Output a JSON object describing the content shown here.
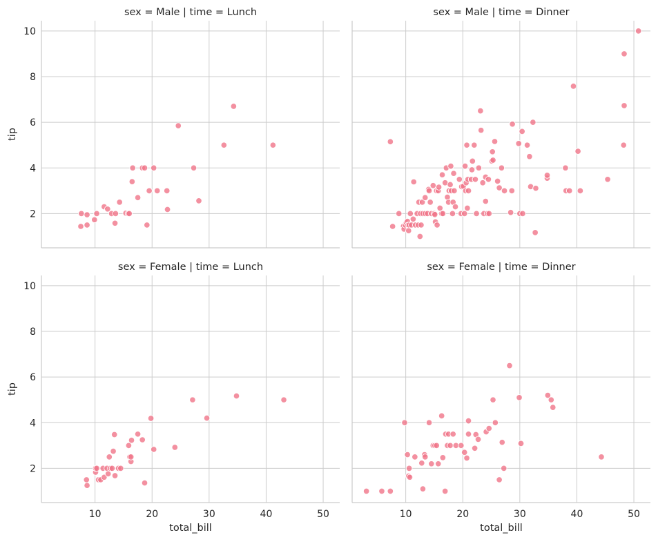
{
  "chart_data": {
    "type": "scatter",
    "color": "#f07488",
    "grid": true,
    "xlabel": "total_bill",
    "ylabel": "tip",
    "xlim": [
      0.6,
      52.9
    ],
    "ylim": [
      0.5,
      10.45
    ],
    "xticks": [
      10,
      20,
      30,
      40,
      50
    ],
    "yticks": [
      2,
      4,
      6,
      8,
      10
    ],
    "panels": [
      {
        "title": "sex = Male | time = Lunch",
        "row": 0,
        "col": 0,
        "points": [
          [
            7.5,
            1.44
          ],
          [
            7.6,
            2.0
          ],
          [
            8.6,
            1.95
          ],
          [
            8.6,
            1.5
          ],
          [
            9.9,
            1.73
          ],
          [
            10.3,
            2.0
          ],
          [
            11.6,
            2.3
          ],
          [
            12.2,
            2.2
          ],
          [
            12.9,
            2.0
          ],
          [
            13.5,
            1.58
          ],
          [
            13.6,
            2.0
          ],
          [
            14.3,
            2.5
          ],
          [
            15.4,
            2.02
          ],
          [
            15.8,
            2.0
          ],
          [
            16.0,
            2.0
          ],
          [
            16.5,
            3.4
          ],
          [
            16.6,
            4.0
          ],
          [
            17.5,
            2.7
          ],
          [
            18.3,
            4.0
          ],
          [
            18.7,
            4.0
          ],
          [
            19.1,
            1.5
          ],
          [
            19.5,
            3.0
          ],
          [
            20.3,
            4.0
          ],
          [
            20.9,
            3.0
          ],
          [
            22.6,
            3.0
          ],
          [
            22.7,
            2.18
          ],
          [
            24.6,
            5.85
          ],
          [
            27.3,
            4.0
          ],
          [
            28.2,
            2.56
          ],
          [
            32.6,
            5.0
          ],
          [
            34.3,
            6.7
          ],
          [
            41.2,
            5.0
          ]
        ]
      },
      {
        "title": "sex = Male | time = Dinner",
        "row": 0,
        "col": 1,
        "points": [
          [
            7.3,
            5.15
          ],
          [
            7.7,
            1.44
          ],
          [
            8.8,
            2.0
          ],
          [
            9.6,
            1.45
          ],
          [
            9.7,
            1.32
          ],
          [
            9.9,
            1.5
          ],
          [
            10.1,
            1.6
          ],
          [
            10.3,
            1.66
          ],
          [
            10.4,
            1.5
          ],
          [
            10.5,
            1.25
          ],
          [
            10.6,
            1.5
          ],
          [
            10.8,
            2.0
          ],
          [
            11.0,
            1.5
          ],
          [
            11.3,
            1.76
          ],
          [
            11.4,
            3.39
          ],
          [
            11.7,
            1.5
          ],
          [
            12.0,
            2.0
          ],
          [
            12.2,
            1.5
          ],
          [
            12.3,
            2.5
          ],
          [
            12.5,
            1.0
          ],
          [
            12.6,
            2.0
          ],
          [
            12.7,
            1.5
          ],
          [
            12.9,
            2.5
          ],
          [
            13.0,
            2.0
          ],
          [
            13.4,
            2.0
          ],
          [
            13.4,
            2.7
          ],
          [
            13.8,
            2.0
          ],
          [
            14.0,
            3.06
          ],
          [
            14.1,
            3.0
          ],
          [
            14.3,
            2.5
          ],
          [
            14.5,
            2.0
          ],
          [
            14.8,
            3.23
          ],
          [
            15.0,
            2.0
          ],
          [
            15.1,
            1.96
          ],
          [
            15.2,
            1.64
          ],
          [
            15.4,
            3.0
          ],
          [
            15.5,
            1.5
          ],
          [
            15.7,
            3.0
          ],
          [
            15.8,
            3.16
          ],
          [
            16.0,
            2.24
          ],
          [
            16.3,
            2.0
          ],
          [
            16.4,
            3.7
          ],
          [
            16.5,
            2.0
          ],
          [
            16.9,
            3.35
          ],
          [
            17.1,
            4.0
          ],
          [
            17.3,
            2.72
          ],
          [
            17.5,
            2.5
          ],
          [
            17.6,
            3.0
          ],
          [
            17.8,
            3.27
          ],
          [
            17.9,
            4.08
          ],
          [
            18.0,
            3.0
          ],
          [
            18.2,
            2.0
          ],
          [
            18.3,
            2.5
          ],
          [
            18.4,
            3.76
          ],
          [
            18.5,
            3.0
          ],
          [
            18.7,
            2.3
          ],
          [
            19.4,
            3.5
          ],
          [
            19.7,
            2.0
          ],
          [
            19.8,
            3.18
          ],
          [
            20.1,
            3.2
          ],
          [
            20.3,
            2.0
          ],
          [
            20.4,
            4.08
          ],
          [
            20.5,
            3.0
          ],
          [
            20.6,
            3.35
          ],
          [
            20.7,
            5.0
          ],
          [
            20.8,
            2.24
          ],
          [
            20.9,
            3.5
          ],
          [
            21.0,
            3.0
          ],
          [
            21.5,
            3.5
          ],
          [
            21.6,
            3.92
          ],
          [
            21.7,
            4.3
          ],
          [
            22.0,
            5.0
          ],
          [
            22.2,
            3.5
          ],
          [
            22.4,
            2.0
          ],
          [
            22.8,
            4.0
          ],
          [
            23.1,
            6.5
          ],
          [
            23.2,
            5.65
          ],
          [
            23.5,
            3.35
          ],
          [
            23.7,
            2.0
          ],
          [
            24.0,
            3.6
          ],
          [
            24.0,
            2.54
          ],
          [
            24.3,
            2.0
          ],
          [
            24.5,
            3.5
          ],
          [
            24.6,
            2.0
          ],
          [
            25.1,
            4.3
          ],
          [
            25.2,
            4.71
          ],
          [
            25.3,
            4.34
          ],
          [
            25.6,
            5.16
          ],
          [
            26.1,
            3.42
          ],
          [
            26.4,
            3.13
          ],
          [
            26.8,
            4.0
          ],
          [
            27.3,
            3.0
          ],
          [
            28.4,
            2.05
          ],
          [
            28.6,
            3.0
          ],
          [
            28.7,
            5.92
          ],
          [
            29.8,
            5.07
          ],
          [
            30.0,
            2.0
          ],
          [
            30.4,
            5.6
          ],
          [
            30.5,
            2.0
          ],
          [
            31.3,
            5.0
          ],
          [
            31.7,
            4.5
          ],
          [
            31.9,
            3.18
          ],
          [
            32.3,
            6.0
          ],
          [
            32.7,
            1.17
          ],
          [
            32.8,
            3.11
          ],
          [
            34.8,
            3.55
          ],
          [
            34.8,
            3.68
          ],
          [
            38.0,
            4.0
          ],
          [
            38.1,
            3.0
          ],
          [
            38.7,
            3.0
          ],
          [
            39.4,
            7.58
          ],
          [
            40.2,
            4.73
          ],
          [
            40.6,
            3.0
          ],
          [
            45.4,
            3.5
          ],
          [
            48.2,
            5.0
          ],
          [
            48.3,
            9.0
          ],
          [
            48.3,
            6.73
          ],
          [
            50.8,
            10.0
          ]
        ]
      },
      {
        "title": "sex = Female | time = Lunch",
        "row": 1,
        "col": 0,
        "points": [
          [
            8.5,
            1.5
          ],
          [
            8.6,
            1.25
          ],
          [
            10.1,
            1.83
          ],
          [
            10.1,
            2.0
          ],
          [
            10.3,
            2.0
          ],
          [
            10.6,
            1.5
          ],
          [
            11.0,
            1.5
          ],
          [
            11.4,
            2.0
          ],
          [
            11.6,
            1.61
          ],
          [
            12.1,
            2.0
          ],
          [
            12.3,
            1.76
          ],
          [
            12.5,
            2.5
          ],
          [
            12.7,
            2.0
          ],
          [
            13.0,
            2.0
          ],
          [
            13.2,
            2.75
          ],
          [
            13.4,
            3.48
          ],
          [
            13.5,
            1.68
          ],
          [
            14.1,
            2.0
          ],
          [
            14.5,
            2.0
          ],
          [
            15.9,
            3.0
          ],
          [
            16.1,
            2.5
          ],
          [
            16.3,
            2.3
          ],
          [
            16.4,
            3.23
          ],
          [
            16.3,
            2.5
          ],
          [
            17.5,
            3.5
          ],
          [
            18.3,
            3.25
          ],
          [
            18.7,
            1.36
          ],
          [
            19.8,
            4.19
          ],
          [
            20.3,
            2.83
          ],
          [
            24.0,
            2.92
          ],
          [
            27.1,
            5.0
          ],
          [
            29.6,
            4.2
          ],
          [
            34.8,
            5.17
          ],
          [
            43.1,
            5.0
          ]
        ]
      },
      {
        "title": "sex = Female | time = Dinner",
        "row": 1,
        "col": 1,
        "points": [
          [
            3.1,
            1.0
          ],
          [
            5.8,
            1.0
          ],
          [
            7.3,
            1.0
          ],
          [
            9.8,
            4.0
          ],
          [
            10.3,
            2.6
          ],
          [
            10.5,
            1.66
          ],
          [
            10.6,
            2.0
          ],
          [
            10.7,
            1.61
          ],
          [
            11.6,
            2.5
          ],
          [
            12.8,
            2.23
          ],
          [
            13.0,
            1.1
          ],
          [
            13.3,
            2.6
          ],
          [
            13.4,
            2.5
          ],
          [
            14.1,
            4.0
          ],
          [
            14.5,
            2.2
          ],
          [
            14.8,
            3.0
          ],
          [
            15.1,
            3.0
          ],
          [
            15.4,
            3.0
          ],
          [
            15.7,
            2.2
          ],
          [
            16.3,
            4.3
          ],
          [
            16.5,
            2.47
          ],
          [
            16.9,
            1.0
          ],
          [
            17.0,
            3.5
          ],
          [
            17.3,
            3.0
          ],
          [
            17.5,
            3.5
          ],
          [
            17.8,
            3.0
          ],
          [
            18.3,
            3.5
          ],
          [
            18.8,
            3.0
          ],
          [
            19.7,
            3.0
          ],
          [
            20.3,
            2.7
          ],
          [
            20.7,
            2.45
          ],
          [
            21.0,
            4.08
          ],
          [
            21.0,
            3.5
          ],
          [
            22.1,
            2.88
          ],
          [
            22.3,
            3.48
          ],
          [
            22.7,
            3.27
          ],
          [
            24.1,
            3.6
          ],
          [
            24.6,
            3.75
          ],
          [
            25.3,
            5.0
          ],
          [
            25.7,
            4.0
          ],
          [
            26.4,
            1.5
          ],
          [
            26.9,
            3.14
          ],
          [
            27.2,
            2.0
          ],
          [
            28.2,
            6.5
          ],
          [
            29.9,
            5.1
          ],
          [
            30.2,
            3.09
          ],
          [
            34.9,
            5.2
          ],
          [
            35.5,
            5.0
          ],
          [
            35.8,
            4.67
          ],
          [
            44.3,
            2.5
          ]
        ]
      }
    ]
  }
}
